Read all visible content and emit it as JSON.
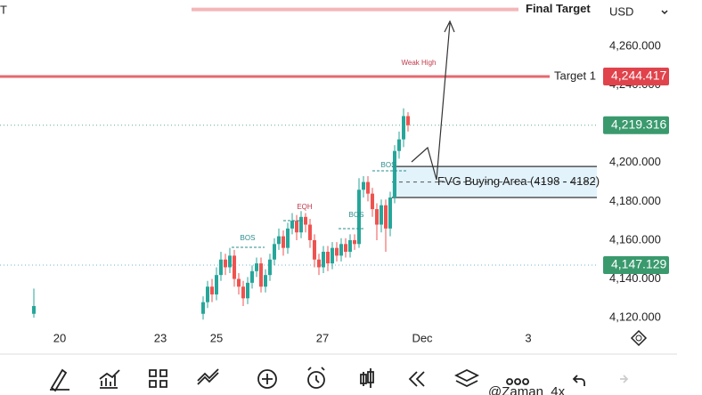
{
  "top_left_text": "T",
  "currency": "USD",
  "watermark": "@Zaman_4x",
  "chart_data": {
    "type": "candlestick",
    "up_color": "#26a69a",
    "down_color": "#ef5350",
    "ylim": [
      4102.6,
      4283.9
    ],
    "yticks": [
      {
        "value": 4260,
        "label": "4,260.000"
      },
      {
        "value": 4240,
        "label": "4,240.000"
      },
      {
        "value": 4200,
        "label": "4,200.000"
      },
      {
        "value": 4180,
        "label": "4,180.000"
      },
      {
        "value": 4160,
        "label": "4,160.000"
      },
      {
        "value": 4140,
        "label": "4,140.000"
      },
      {
        "value": 4120,
        "label": "4,120.000"
      }
    ],
    "xlim": [
      -45.6,
      88.4
    ],
    "xticks": [
      {
        "value": -32.2,
        "label": "20"
      },
      {
        "value": -9.6,
        "label": "23"
      },
      {
        "value": 3,
        "label": "25"
      },
      {
        "value": 26.8,
        "label": "27"
      },
      {
        "value": 49.2,
        "label": "Dec"
      },
      {
        "value": 73,
        "label": "3"
      }
    ],
    "x": [
      -38,
      0,
      1,
      2,
      3,
      4,
      5,
      6,
      7,
      8,
      9,
      10,
      11,
      12,
      13,
      14,
      15,
      16,
      17,
      18,
      19,
      20,
      21,
      22,
      23,
      24,
      25,
      26,
      27,
      28,
      29,
      30,
      31,
      32,
      33,
      34,
      35,
      36,
      37,
      38,
      39,
      40,
      41,
      42,
      43,
      44,
      45,
      46
    ],
    "open": [
      4122,
      4122,
      4128,
      4136,
      4132,
      4142,
      4150,
      4146,
      4152,
      4140,
      4136,
      4130,
      4138,
      4144,
      4148,
      4136,
      4142,
      4150,
      4158,
      4162,
      4156,
      4166,
      4170,
      4164,
      4172,
      4168,
      4160,
      4150,
      4146,
      4154,
      4148,
      4156,
      4152,
      4158,
      4154,
      4160,
      4158,
      4186,
      4190,
      4184,
      4176,
      4168,
      4178,
      4166,
      4182,
      4206,
      4212,
      4224
    ],
    "high": [
      4135,
      4131,
      4139,
      4140,
      4146,
      4154,
      4153,
      4156,
      4155,
      4143,
      4139,
      4141,
      4147,
      4151,
      4151,
      4145,
      4153,
      4161,
      4166,
      4165,
      4169,
      4174,
      4173,
      4175,
      4174,
      4171,
      4163,
      4153,
      4157,
      4157,
      4159,
      4159,
      4161,
      4161,
      4163,
      4163,
      4192,
      4193,
      4193,
      4187,
      4179,
      4181,
      4181,
      4185,
      4209,
      4216,
      4228,
      4226
    ],
    "low": [
      4120,
      4119,
      4125,
      4128,
      4129,
      4139,
      4142,
      4143,
      4136,
      4132,
      4126,
      4127,
      4135,
      4141,
      4133,
      4133,
      4139,
      4147,
      4155,
      4152,
      4153,
      4163,
      4160,
      4161,
      4164,
      4156,
      4146,
      4142,
      4143,
      4144,
      4145,
      4149,
      4149,
      4151,
      4151,
      4155,
      4156,
      4182,
      4180,
      4172,
      4160,
      4164,
      4154,
      4162,
      4179,
      4202,
      4208,
      4216
    ],
    "close": [
      4126,
      4128,
      4136,
      4132,
      4142,
      4150,
      4146,
      4152,
      4140,
      4136,
      4130,
      4138,
      4144,
      4148,
      4136,
      4142,
      4150,
      4158,
      4162,
      4156,
      4166,
      4170,
      4164,
      4172,
      4168,
      4160,
      4150,
      4146,
      4154,
      4148,
      4156,
      4152,
      4158,
      4154,
      4160,
      4158,
      4186,
      4190,
      4184,
      4176,
      4168,
      4178,
      4166,
      4182,
      4206,
      4212,
      4224,
      4219.316
    ],
    "levels": [
      {
        "name": "Final Target",
        "value": 4279,
        "color": "#f2a5a8"
      },
      {
        "name": "Target 1",
        "value": 4244.417,
        "label": "4,244.417",
        "color": "#e0434b"
      },
      {
        "value": 4219.316,
        "label": "4,219.316",
        "color": "#3a9a6e"
      },
      {
        "value": 4147.129,
        "label": "4,147.129",
        "color": "#3a9a6e"
      }
    ],
    "zone": {
      "name": "FVG Buying Area (4198 - 4182)",
      "high": 4198,
      "low": 4182
    },
    "annotations": [
      "Weak High",
      "EQH",
      "BOS",
      "BOS",
      "BOS"
    ]
  }
}
